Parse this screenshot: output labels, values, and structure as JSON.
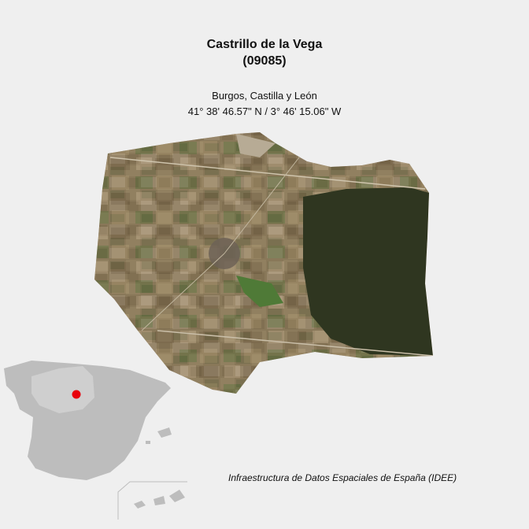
{
  "header": {
    "municipality": "Castrillo de la Vega",
    "code": "(09085)",
    "region": "Burgos, Castilla y León",
    "coordinates": "41° 38' 46.57\" N / 3° 46' 15.06\" W"
  },
  "footer": {
    "credit": "Infraestructura de Datos Espaciales de España (IDEE)"
  },
  "colors": {
    "background": "#efefef",
    "fields": "#8a7a5a",
    "forest": "#2f3620",
    "inset_land": "#bdbdbd",
    "marker": "#e8000b"
  }
}
